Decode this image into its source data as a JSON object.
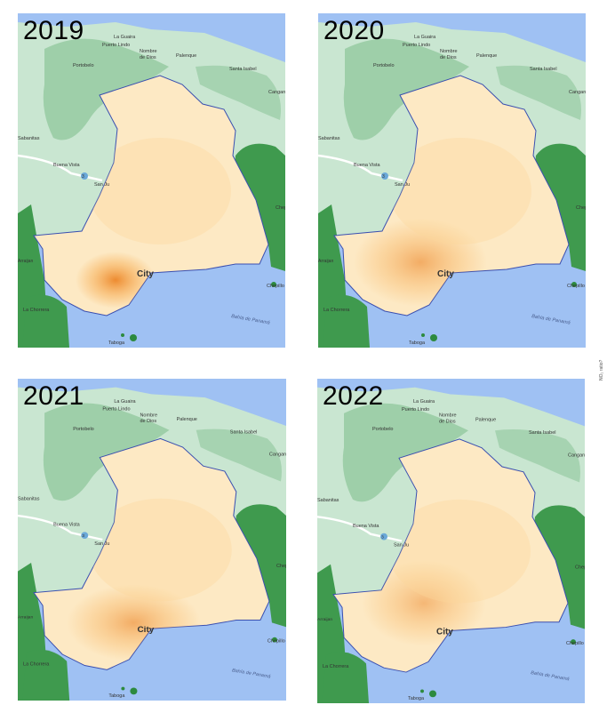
{
  "panels": [
    {
      "year": "2019"
    },
    {
      "year": "2020"
    },
    {
      "year": "2021"
    },
    {
      "year": "2022"
    }
  ],
  "map_labels": {
    "la_guaira": "La Guaira",
    "puerto_lindo": "Puerto Lindo",
    "nombre_de": "Nombre",
    "de_dios": "de Dios",
    "palenque": "Palenque",
    "portobelo": "Portobelo",
    "santa_isabel": "Santa Isabel",
    "cangan": "Cangan",
    "sabanitas": "Sabanitas",
    "buena_vista": "Buena Vista",
    "san_ju": "San Ju",
    "route": "3",
    "city": "City",
    "chepillo": "Chepillo",
    "chep": "Chep",
    "bahia": "Bahía de Panamá",
    "la_chorrera": "La Chorrera",
    "taboga": "Taboga",
    "arraijan": "Arraijan"
  },
  "side_label": "NO₂ ratio?",
  "colors": {
    "water": "#9fc1f3",
    "forest": "#3f9a4e",
    "land_light": "#c9e6d1",
    "pale": "#fde9c4",
    "hotspot": "#ea7a16"
  }
}
